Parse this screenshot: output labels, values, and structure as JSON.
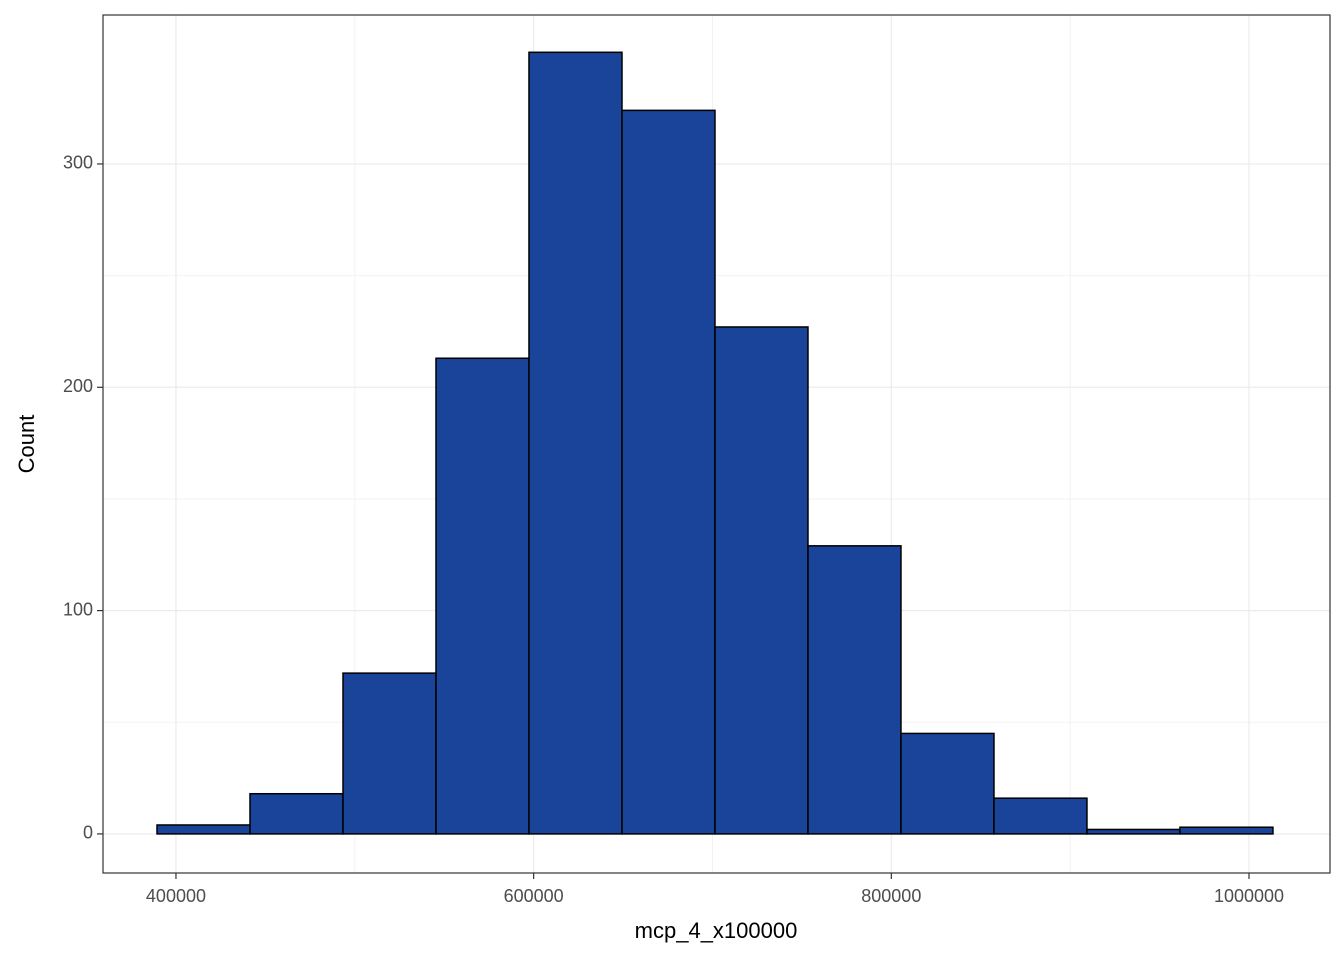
{
  "chart_data": {
    "type": "histogram",
    "x_label": "mcp_4_x100000",
    "y_label": "Count",
    "bins": [
      389400,
      441400,
      493400,
      545400,
      597400,
      649400,
      701400,
      753400,
      805400,
      857400,
      909400,
      961400,
      1013400
    ],
    "values": [
      4,
      18,
      72,
      213,
      350,
      324,
      227,
      129,
      45,
      16,
      2,
      3
    ],
    "color": "#19449a",
    "edge_color": "#000000",
    "xlim": [
      359200,
      1045300
    ],
    "ylim": [
      -17.5,
      366.7
    ],
    "xticks": [
      400000,
      600000,
      800000,
      1000000
    ],
    "yticks": [
      0,
      100,
      200,
      300
    ],
    "grid": true
  }
}
